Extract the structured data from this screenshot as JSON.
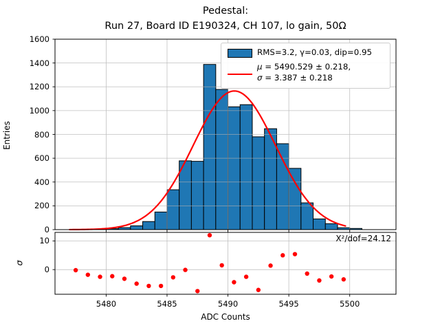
{
  "title": {
    "line1": "Pedestal:",
    "line2": "Run 27, Board ID E190324, CH 107, lo gain, 50Ω"
  },
  "legend": {
    "hist_label": "RMS=3.2, γ=0.03, dip=0.95",
    "mu_symbol": "μ",
    "mu_rest": " = 5490.529 ± 0.218,",
    "sigma_symbol": "σ",
    "sigma_rest": " = 3.387 ± 0.218"
  },
  "annotations": {
    "chi2": "X²/dof=24.12"
  },
  "axes": {
    "main": {
      "ylabel": "Entries",
      "y_ticks": [
        0,
        200,
        400,
        600,
        800,
        1000,
        1200,
        1400,
        1600
      ]
    },
    "residual": {
      "ylabel": "σ",
      "y_ticks": [
        0,
        10
      ]
    },
    "x": {
      "label": "ADC Counts",
      "ticks": [
        5480,
        5485,
        5490,
        5495,
        5500
      ]
    }
  },
  "chart_data": {
    "type": "bar",
    "subtype": "histogram_with_gaussian_fit_and_residuals",
    "title": "Pedestal: Run 27, Board ID E190324, CH 107, lo gain, 50Ω",
    "xlabel": "ADC Counts",
    "ylabel_main": "Entries",
    "ylabel_residual": "σ",
    "xlim": [
      5475.8,
      5503.8
    ],
    "ylim_main": [
      0,
      1600
    ],
    "ylim_residual": [
      -8.6,
      13.0
    ],
    "grid": true,
    "legend_position": "upper right",
    "bar_color": "#1f77b4",
    "bar_edge_color": "#000000",
    "fit_color": "#ff0000",
    "residual_dot_color": "#ff0000",
    "grid_color": "#b0b0b0",
    "histogram": {
      "bin_width": 1,
      "bin_left_edges": [
        5477,
        5478,
        5479,
        5480,
        5481,
        5482,
        5483,
        5484,
        5485,
        5486,
        5487,
        5488,
        5489,
        5490,
        5491,
        5492,
        5493,
        5494,
        5495,
        5496,
        5497,
        5498,
        5499,
        5500
      ],
      "counts": [
        1,
        1,
        2,
        8,
        17,
        32,
        68,
        148,
        335,
        578,
        574,
        1388,
        1178,
        1032,
        1050,
        780,
        848,
        722,
        515,
        225,
        90,
        50,
        16,
        10
      ]
    },
    "fit": {
      "shape": "gaussian",
      "mu": 5490.529,
      "mu_err": 0.218,
      "sigma": 3.387,
      "sigma_err": 0.218,
      "amplitude": 1165,
      "x_range": [
        5477.0,
        5499.65
      ],
      "chi2_per_dof": 24.12,
      "rms": 3.2,
      "gamma": 0.03,
      "dip": 0.95
    },
    "residuals": {
      "x": [
        5477.5,
        5478.5,
        5479.5,
        5480.5,
        5481.5,
        5482.5,
        5483.5,
        5484.5,
        5485.5,
        5486.5,
        5487.5,
        5488.5,
        5489.5,
        5490.5,
        5491.5,
        5492.5,
        5493.5,
        5494.5,
        5495.5,
        5496.5,
        5497.5,
        5498.5,
        5499.5
      ],
      "sigma": [
        -0.2,
        -1.8,
        -2.5,
        -2.3,
        -3.2,
        -4.9,
        -5.7,
        -5.7,
        -2.7,
        -0.1,
        -7.5,
        12.0,
        1.5,
        -4.4,
        -2.5,
        -7.1,
        1.4,
        5.0,
        5.4,
        -1.4,
        -3.8,
        -2.4,
        -3.4
      ]
    }
  }
}
